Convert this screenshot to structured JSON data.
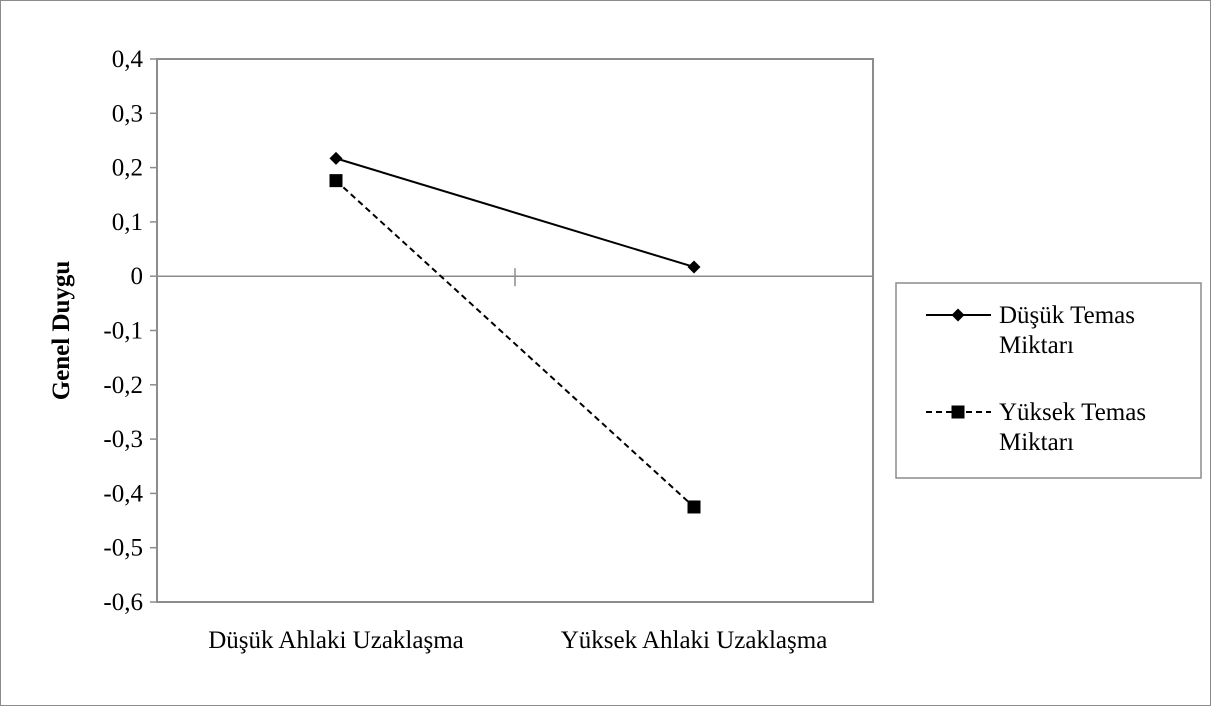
{
  "chart_data": {
    "type": "line",
    "title": "",
    "xlabel": "",
    "ylabel": "Genel Duygu",
    "categories": [
      "Düşük Ahlaki Uzaklaşma",
      "Yüksek Ahlaki Uzaklaşma"
    ],
    "ylim": [
      -0.6,
      0.4
    ],
    "yticks": [
      0.4,
      0.3,
      0.2,
      0.1,
      0,
      -0.1,
      -0.2,
      -0.3,
      -0.4,
      -0.5,
      -0.6
    ],
    "ytick_labels": [
      "0,4",
      "0,3",
      "0,2",
      "0,1",
      "0",
      "-0,1",
      "-0,2",
      "-0,3",
      "-0,4",
      "-0,5",
      "-0,6"
    ],
    "grid": false,
    "legend_position": "right",
    "series": [
      {
        "name": "Düşük Temas Miktarı",
        "legend_lines": [
          "Düşük Temas",
          "Miktarı"
        ],
        "values": [
          0.217,
          0.017
        ],
        "line_style": "solid",
        "marker": "diamond",
        "color": "#000000"
      },
      {
        "name": "Yüksek Temas Miktarı",
        "legend_lines": [
          "Yüksek Temas",
          "Miktarı"
        ],
        "values": [
          0.176,
          -0.425
        ],
        "line_style": "dashed",
        "marker": "square",
        "color": "#000000"
      }
    ]
  }
}
